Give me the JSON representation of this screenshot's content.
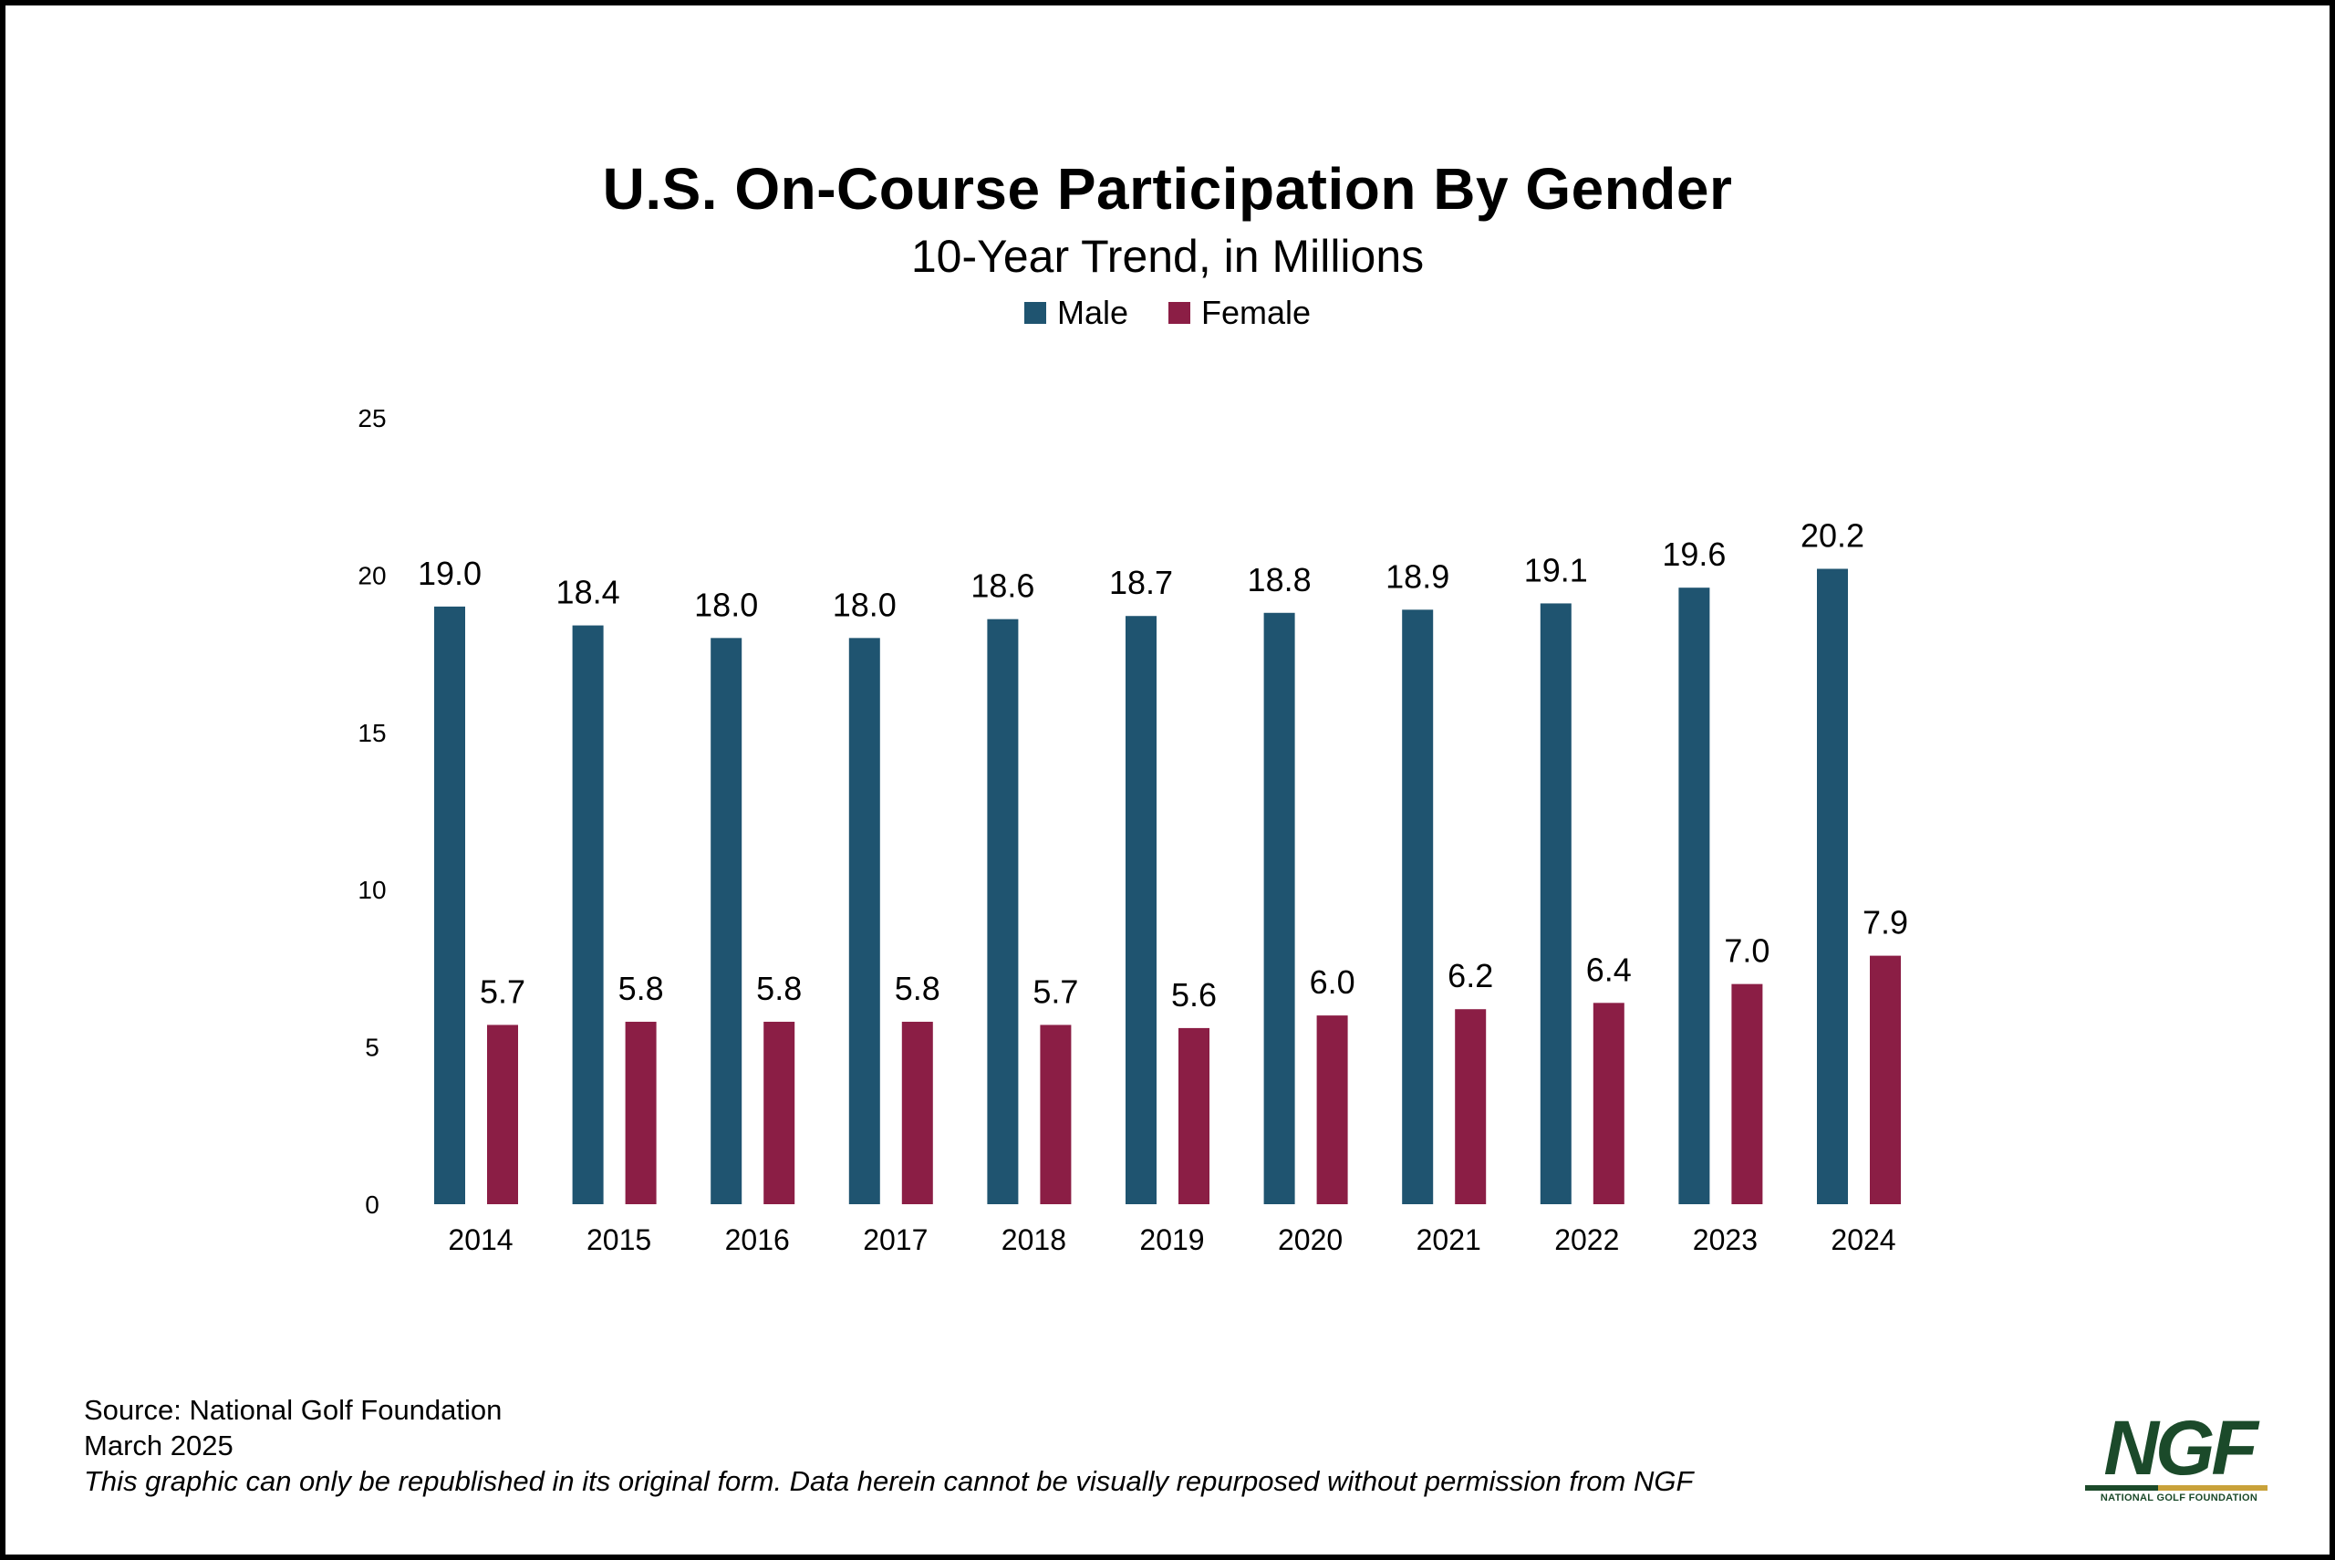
{
  "chart_data": {
    "type": "bar",
    "title": "U.S. On-Course Participation By Gender",
    "subtitle": "10-Year Trend, in Millions",
    "categories": [
      "2014",
      "2015",
      "2016",
      "2017",
      "2018",
      "2019",
      "2020",
      "2021",
      "2022",
      "2023",
      "2024"
    ],
    "series": [
      {
        "name": "Male",
        "color": "#1f5470",
        "values": [
          19.0,
          18.4,
          18.0,
          18.0,
          18.6,
          18.7,
          18.8,
          18.9,
          19.1,
          19.6,
          20.2
        ],
        "labels": [
          "19.0",
          "18.4",
          "18.0",
          "18.0",
          "18.6",
          "18.7",
          "18.8",
          "18.9",
          "19.1",
          "19.6",
          "20.2"
        ]
      },
      {
        "name": "Female",
        "color": "#8b1e45",
        "values": [
          5.7,
          5.8,
          5.8,
          5.8,
          5.7,
          5.6,
          6.0,
          6.2,
          6.4,
          7.0,
          7.9
        ],
        "labels": [
          "5.7",
          "5.8",
          "5.8",
          "5.8",
          "5.7",
          "5.6",
          "6.0",
          "6.2",
          "6.4",
          "7.0",
          "7.9"
        ]
      }
    ],
    "yticks": [
      "0",
      "5",
      "10",
      "15",
      "20",
      "25"
    ],
    "ylim": [
      0,
      25
    ],
    "legend": "top-center",
    "grid": false
  },
  "footer": {
    "source": "Source: National Golf Foundation",
    "date": "March 2025",
    "notice": "This graphic can only be republished in its original form. Data herein cannot be visually repurposed without permission from NGF"
  },
  "logo": {
    "mark": "NGF",
    "subtitle": "NATIONAL GOLF FOUNDATION"
  }
}
